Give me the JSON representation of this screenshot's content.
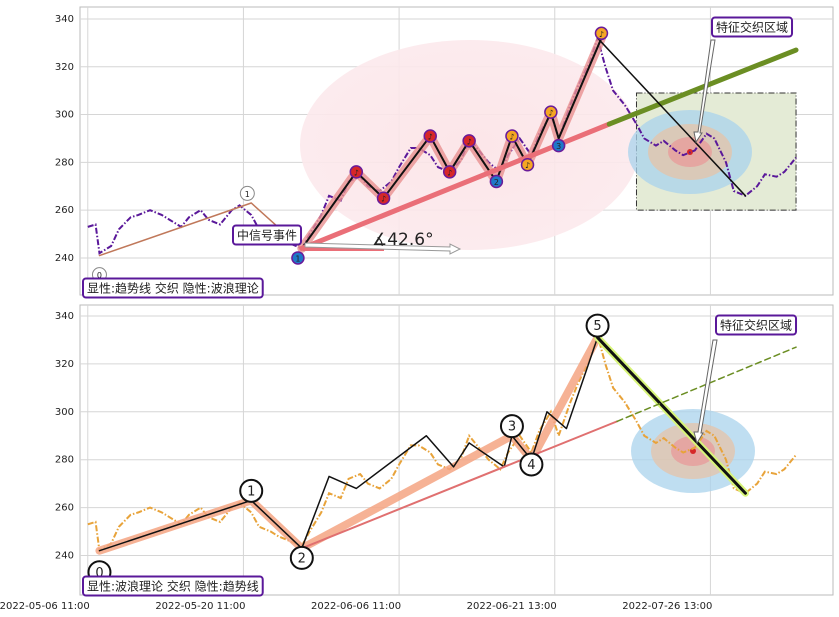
{
  "chart_data": [
    {
      "type": "line",
      "ylim": [
        224.5,
        345
      ],
      "yticks": [
        240,
        260,
        280,
        300,
        320,
        340
      ],
      "xlim": [
        -2,
        191.5
      ],
      "grid": true,
      "series": [
        {
          "color": "#5a189a",
          "dash": "dashdot",
          "x": [
            0,
            2,
            3,
            6,
            8,
            11,
            13,
            16,
            19,
            21,
            24,
            26,
            29,
            31,
            34,
            37,
            39,
            42,
            44,
            47,
            49,
            52,
            55,
            57,
            60,
            62,
            65,
            67,
            70,
            72,
            75,
            78,
            80,
            83,
            85,
            88,
            90,
            93,
            96,
            98,
            101,
            103,
            106,
            108,
            111,
            114,
            116,
            119,
            121,
            124,
            126,
            129,
            131,
            133,
            135,
            138,
            141,
            143,
            146,
            148,
            151,
            153,
            156,
            159,
            161,
            164,
            166,
            169,
            172,
            174,
            177,
            179,
            182
          ],
          "values": [
            253,
            254,
            242,
            245,
            252,
            257,
            258,
            260,
            258,
            256,
            253,
            257,
            260,
            256,
            254,
            260,
            262,
            258,
            252,
            250,
            248,
            246,
            244,
            250,
            258,
            266,
            264,
            272,
            274,
            270,
            268,
            272,
            278,
            286,
            286,
            283,
            278,
            276,
            281,
            290,
            284,
            280,
            276,
            283,
            290,
            283,
            292,
            300,
            290,
            304,
            312,
            322,
            332,
            320,
            310,
            304,
            296,
            290,
            287,
            289,
            285,
            283,
            285,
            292,
            290,
            280,
            268,
            266,
            270,
            275,
            274,
            276,
            282
          ]
        }
      ],
      "lines": [
        {
          "x": [
            3,
            42,
            55
          ],
          "y": [
            241,
            263,
            244
          ],
          "color": "#c0785a",
          "width": 1.5
        },
        {
          "x": [
            55,
            69,
            76,
            88,
            93,
            98,
            105,
            109,
            113,
            119,
            121,
            132
          ],
          "y": [
            244,
            276,
            265,
            291,
            276,
            289,
            272,
            291,
            279,
            301,
            290,
            332
          ],
          "color": "#e89090",
          "width": 9,
          "opacity": 0.8
        },
        {
          "x": [
            55,
            69,
            76,
            88,
            93,
            98,
            105,
            109,
            113,
            119,
            121,
            132
          ],
          "y": [
            244,
            276,
            265,
            291,
            276,
            289,
            272,
            291,
            279,
            301,
            290,
            332
          ],
          "color": "#111111",
          "width": 2
        },
        {
          "x": [
            55,
            134
          ],
          "y": [
            244,
            296
          ],
          "color": "#ea6f78",
          "width": 5
        },
        {
          "x": [
            134,
            182
          ],
          "y": [
            296,
            327
          ],
          "color": "#6b8e23",
          "width": 5
        },
        {
          "x": [
            131,
            169
          ],
          "y": [
            332,
            266
          ],
          "color": "#111111",
          "width": 1.5
        }
      ],
      "zone": {
        "x": [
          141,
          182
        ],
        "y": [
          260,
          309
        ]
      },
      "markers": [
        {
          "x": 3,
          "y": 233,
          "label": "0",
          "color": "#ffffff"
        },
        {
          "x": 41,
          "y": 267,
          "label": "1",
          "color": "#ffffff"
        },
        {
          "x": 54,
          "y": 240,
          "label": "1",
          "color": "#1f78c8"
        },
        {
          "x": 69,
          "y": 276,
          "label": "♪",
          "color": "#d62728"
        },
        {
          "x": 76,
          "y": 265,
          "label": "♪",
          "color": "#d62728"
        },
        {
          "x": 88,
          "y": 291,
          "label": "♪",
          "color": "#d62728"
        },
        {
          "x": 93,
          "y": 276,
          "label": "♪",
          "color": "#d62728"
        },
        {
          "x": 98,
          "y": 289,
          "label": "♪",
          "color": "#d62728"
        },
        {
          "x": 105,
          "y": 272,
          "label": "2",
          "color": "#1f78c8"
        },
        {
          "x": 109,
          "y": 291,
          "label": "♪",
          "color": "#f5a623"
        },
        {
          "x": 113,
          "y": 279,
          "label": "♪",
          "color": "#f5a623"
        },
        {
          "x": 119,
          "y": 301,
          "label": "♪",
          "color": "#f5a623"
        },
        {
          "x": 121,
          "y": 287,
          "label": "3",
          "color": "#1f78c8"
        },
        {
          "x": 132,
          "y": 334,
          "label": "♪",
          "color": "#f5a623"
        }
      ],
      "annotations": [
        "中信号事件",
        "∡42.6°",
        "特征交织区域",
        "显性:趋势线 交织 隐性:波浪理论"
      ]
    },
    {
      "type": "line",
      "ylim": [
        223.5,
        344.6
      ],
      "yticks": [
        240,
        260,
        280,
        300,
        320,
        340
      ],
      "xlim": [
        -2,
        191.5
      ],
      "grid": true,
      "xticks": [
        {
          "value": 0,
          "label": "2022-05-06 11:00"
        },
        {
          "value": 40,
          "label": "2022-05-20 11:00"
        },
        {
          "value": 80,
          "label": "2022-06-06 11:00"
        },
        {
          "value": 120,
          "label": "2022-06-21 13:00"
        },
        {
          "value": 160,
          "label": "2022-07-26 13:00"
        }
      ],
      "series": [
        {
          "color": "#e8a33a",
          "dash": "dashdot",
          "x": [
            0,
            2,
            3,
            6,
            8,
            11,
            13,
            16,
            19,
            21,
            24,
            26,
            29,
            31,
            34,
            37,
            39,
            42,
            44,
            47,
            49,
            52,
            55,
            57,
            60,
            62,
            65,
            67,
            70,
            72,
            75,
            78,
            80,
            83,
            85,
            88,
            90,
            93,
            96,
            98,
            101,
            103,
            106,
            108,
            111,
            114,
            116,
            119,
            121,
            124,
            126,
            129,
            131,
            133,
            135,
            138,
            141,
            143,
            146,
            148,
            151,
            153,
            156,
            159,
            161,
            164,
            166,
            169,
            172,
            174,
            177,
            179,
            182
          ],
          "values": [
            253,
            254,
            242,
            245,
            252,
            257,
            258,
            260,
            258,
            256,
            253,
            257,
            260,
            256,
            254,
            260,
            262,
            258,
            252,
            250,
            248,
            246,
            244,
            250,
            258,
            266,
            264,
            272,
            274,
            270,
            268,
            272,
            278,
            286,
            286,
            283,
            278,
            276,
            281,
            290,
            284,
            280,
            276,
            283,
            290,
            283,
            292,
            300,
            290,
            304,
            312,
            322,
            332,
            320,
            310,
            304,
            296,
            290,
            287,
            289,
            285,
            283,
            285,
            292,
            290,
            280,
            268,
            266,
            270,
            275,
            274,
            276,
            282
          ]
        }
      ],
      "lines": [
        {
          "x": [
            3,
            42,
            55,
            109,
            114,
            131
          ],
          "y": [
            242,
            263,
            243,
            290,
            280,
            331
          ],
          "color": "#f4a582",
          "width": 8,
          "opacity": 0.85
        },
        {
          "x": [
            3,
            42,
            55,
            62,
            69,
            87,
            94,
            98,
            107,
            109,
            114,
            118,
            123,
            131
          ],
          "y": [
            242,
            263,
            243,
            273,
            268,
            290,
            277,
            287,
            277,
            290,
            280,
            300,
            293,
            331
          ],
          "color": "#111111",
          "width": 1.5
        },
        {
          "x": [
            131,
            169
          ],
          "y": [
            331,
            266
          ],
          "color": "#d8f57a",
          "width": 7
        },
        {
          "x": [
            131,
            169
          ],
          "y": [
            331,
            266
          ],
          "color": "#111111",
          "width": 3
        },
        {
          "x": [
            55,
            136
          ],
          "y": [
            243,
            296
          ],
          "color": "#e07070",
          "width": 2
        },
        {
          "x": [
            136,
            182
          ],
          "y": [
            296,
            327
          ],
          "color": "#6b8e23",
          "width": 1.5,
          "dashed": true
        }
      ],
      "waves": [
        {
          "x": 3,
          "y": 233,
          "label": "0"
        },
        {
          "x": 42,
          "y": 267,
          "label": "1"
        },
        {
          "x": 55,
          "y": 239,
          "label": "2"
        },
        {
          "x": 109,
          "y": 294,
          "label": "3"
        },
        {
          "x": 114,
          "y": 278,
          "label": "4"
        },
        {
          "x": 131,
          "y": 336,
          "label": "5"
        }
      ],
      "annotations": [
        "特征交织区域",
        "显性:波浪理论 交织 隐性:趋势线"
      ]
    }
  ]
}
